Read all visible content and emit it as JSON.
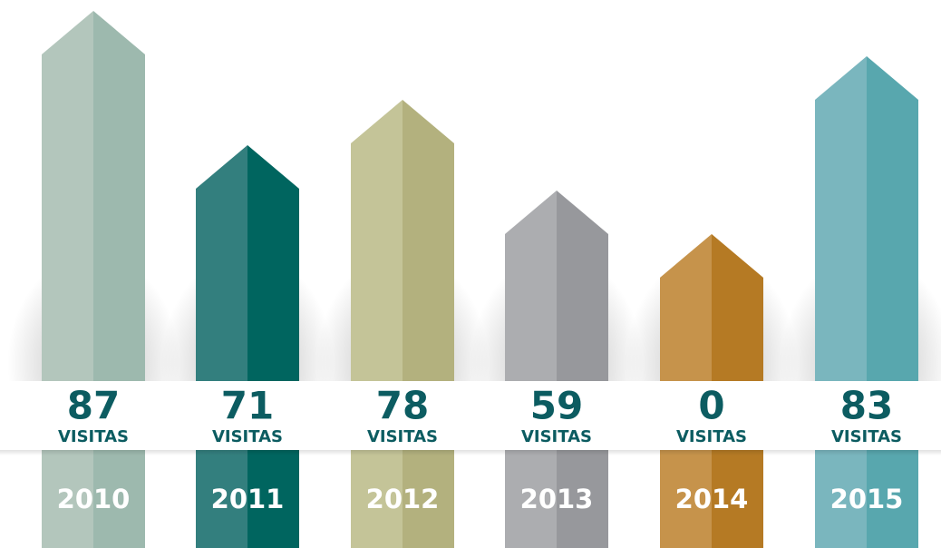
{
  "unit": "VISITAS",
  "items": [
    {
      "year": "2010",
      "value": 87,
      "color": "#b3c6bc",
      "shade": "#9db9ae"
    },
    {
      "year": "2011",
      "value": 71,
      "color": "#337f7e",
      "shade": "#00655f"
    },
    {
      "year": "2012",
      "value": 78,
      "color": "#c4c498",
      "shade": "#b3b17e"
    },
    {
      "year": "2013",
      "value": 59,
      "color": "#acadb0",
      "shade": "#97989c"
    },
    {
      "year": "2014",
      "value": 0,
      "color": "#c6934b",
      "shade": "#b57a24"
    },
    {
      "year": "2015",
      "value": 83,
      "color": "#7ab6be",
      "shade": "#58a7ae"
    }
  ]
}
